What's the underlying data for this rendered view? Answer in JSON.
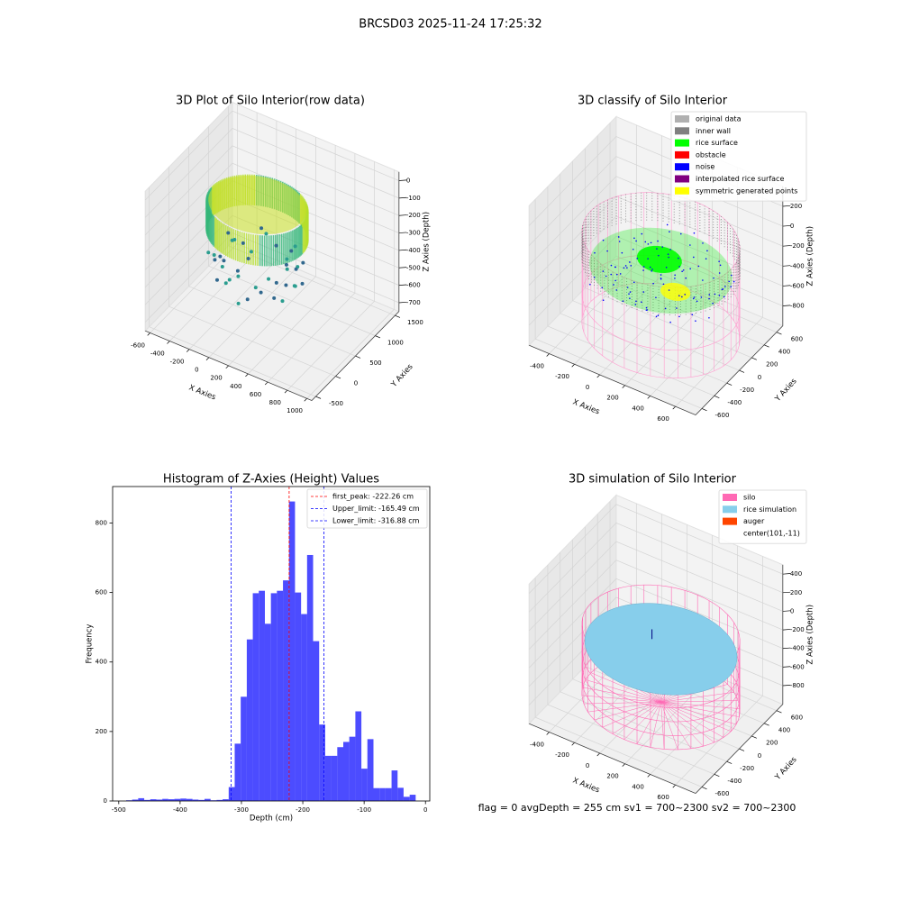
{
  "title": "BRCSD03 2025-11-24 17:25:32",
  "footer": "flag = 0     avgDepth = 255 cm  sv1 = 700~2300  sv2 = 700~2300",
  "chart_data": [
    {
      "type": "scatter3d",
      "title": "3D Plot of Silo Interior(row data)",
      "xlabel": "X Axies",
      "ylabel": "Y Axies",
      "zlabel": "Z Axies (Depth)",
      "xlim": [
        -650,
        1050
      ],
      "ylim": [
        -600,
        1600
      ],
      "zlim": [
        -750,
        50
      ],
      "xticks": [
        -600,
        -400,
        -200,
        0,
        200,
        400,
        600,
        800,
        1000
      ],
      "yticks": [
        -500,
        0,
        500,
        1000,
        1500
      ],
      "zticks": [
        -700,
        -600,
        -500,
        -400,
        -300,
        -200,
        -100,
        0
      ]
    },
    {
      "type": "scatter3d",
      "title": "3D classify of Silo Interior",
      "xlabel": "X Axies",
      "ylabel": "Y Axies",
      "zlabel": "Z Axies (Depth)",
      "xlim": [
        -560,
        760
      ],
      "ylim": [
        -700,
        700
      ],
      "zlim": [
        -1000,
        400
      ],
      "xticks": [
        -400,
        -200,
        0,
        200,
        400,
        600
      ],
      "yticks": [
        -600,
        -400,
        -200,
        0,
        200,
        400,
        600
      ],
      "zticks": [
        -800,
        -600,
        -400,
        -200,
        0,
        200
      ],
      "legend_position": "upper right",
      "legend": [
        {
          "name": "original data",
          "color": "#b0b0b0"
        },
        {
          "name": "inner wall",
          "color": "#808080"
        },
        {
          "name": "rice surface",
          "color": "#00ff00"
        },
        {
          "name": "obstacle",
          "color": "#ff0000"
        },
        {
          "name": "noise",
          "color": "#0000ff"
        },
        {
          "name": "interpolated rice surface",
          "color": "#800080"
        },
        {
          "name": "symmetric generated points",
          "color": "#ffff00"
        }
      ]
    },
    {
      "type": "histogram",
      "title": "Histogram of Z-Axies (Height) Values",
      "xlabel": "Depth (cm)",
      "ylabel": "Frequency",
      "color": "#0000ff",
      "alpha": 0.7,
      "bins": [
        -488,
        -478.2,
        -468.3,
        -458.5,
        -448.7,
        -438.8,
        -429.0,
        -419.2,
        -409.3,
        -399.5,
        -389.7,
        -379.8,
        -370.0,
        -360.2,
        -350.3,
        -340.5,
        -330.7,
        -320.8,
        -311.0,
        -301.2,
        -291.3,
        -281.5,
        -271.7,
        -261.8,
        -252.0,
        -242.2,
        -232.3,
        -222.5,
        -212.7,
        -202.8,
        -193.0,
        -183.2,
        -173.3,
        -163.5,
        -153.7,
        -143.8,
        -134.0,
        -124.2,
        -114.3,
        -104.5,
        -94.7,
        -84.8,
        -75.0,
        -65.2,
        -55.3,
        -45.5,
        -35.7,
        -25.8,
        -16.0
      ],
      "values": [
        2,
        4,
        8,
        3,
        5,
        4,
        6,
        5,
        6,
        7,
        6,
        4,
        3,
        6,
        2,
        3,
        5,
        40,
        165,
        300,
        465,
        598,
        605,
        510,
        598,
        605,
        635,
        862,
        600,
        538,
        708,
        460,
        220,
        130,
        130,
        155,
        170,
        185,
        258,
        93,
        178,
        37,
        37,
        37,
        88,
        38,
        12,
        18
      ],
      "xlim": [
        -510,
        7
      ],
      "ylim": [
        0,
        905
      ],
      "xticks": [
        -500,
        -400,
        -300,
        -200,
        -100,
        0
      ],
      "yticks": [
        0,
        200,
        400,
        600,
        800
      ],
      "legend_position": "upper right",
      "vlines": [
        {
          "name": "first_peak: -222.26 cm",
          "value": -222.26,
          "color": "#ff0000"
        },
        {
          "name": "Upper_limit: -165.49 cm",
          "value": -165.49,
          "color": "#0000ff"
        },
        {
          "name": "Lower_limit: -316.88 cm",
          "value": -316.88,
          "color": "#0000ff"
        }
      ]
    },
    {
      "type": "surface3d",
      "title": "3D simulation of Silo Interior",
      "xlabel": "X Axies",
      "ylabel": "Y Axies",
      "zlabel": "Z Axies (Depth)",
      "xlim": [
        -560,
        760
      ],
      "ylim": [
        -700,
        700
      ],
      "zlim": [
        -1000,
        500
      ],
      "xticks": [
        -400,
        -200,
        0,
        200,
        400,
        600
      ],
      "yticks": [
        -600,
        -400,
        -200,
        0,
        200,
        400,
        600
      ],
      "zticks": [
        -800,
        -600,
        -400,
        -200,
        0,
        200,
        400
      ],
      "legend_position": "upper right",
      "legend": [
        {
          "name": "silo",
          "color": "#ff69b4"
        },
        {
          "name": "rice simulation",
          "color": "#87ceeb"
        },
        {
          "name": "auger",
          "color": "#ff4500"
        },
        {
          "name": "center(101,-11)"
        }
      ]
    }
  ]
}
